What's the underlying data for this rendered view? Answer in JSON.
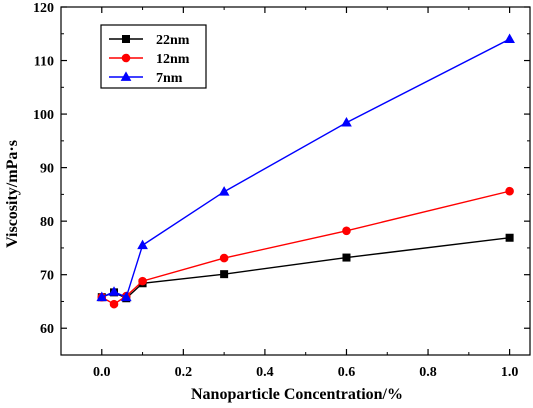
{
  "chart_data": {
    "type": "line",
    "xlabel": "Nanoparticle Concentration/%",
    "ylabel": "Viscosity/mPa·s",
    "xlim": [
      -0.1,
      1.05
    ],
    "ylim": [
      55,
      120
    ],
    "xticks": [
      0.0,
      0.2,
      0.4,
      0.6,
      0.8,
      1.0
    ],
    "xtick_labels": [
      "0.0",
      "0.2",
      "0.4",
      "0.6",
      "0.8",
      "1.0"
    ],
    "yticks": [
      60,
      70,
      80,
      90,
      100,
      110,
      120
    ],
    "ytick_labels": [
      "60",
      "70",
      "80",
      "90",
      "100",
      "110",
      "120"
    ],
    "grid": false,
    "legend_position": "top-left",
    "series": [
      {
        "name": "22nm",
        "color": "#000000",
        "marker": "square",
        "x": [
          0.0,
          0.03,
          0.06,
          0.1,
          0.3,
          0.6,
          1.0
        ],
        "y": [
          65.8,
          66.7,
          65.6,
          68.4,
          70.1,
          73.2,
          76.9
        ]
      },
      {
        "name": "12nm",
        "color": "#ff0000",
        "marker": "circle",
        "x": [
          0.0,
          0.03,
          0.06,
          0.1,
          0.3,
          0.6,
          1.0
        ],
        "y": [
          65.8,
          64.5,
          66.0,
          68.8,
          73.1,
          78.2,
          85.6
        ]
      },
      {
        "name": "7nm",
        "color": "#0000ff",
        "marker": "triangle",
        "x": [
          0.0,
          0.03,
          0.06,
          0.1,
          0.3,
          0.6,
          1.0
        ],
        "y": [
          65.8,
          66.8,
          65.8,
          75.5,
          85.5,
          98.4,
          114.0
        ]
      }
    ]
  }
}
